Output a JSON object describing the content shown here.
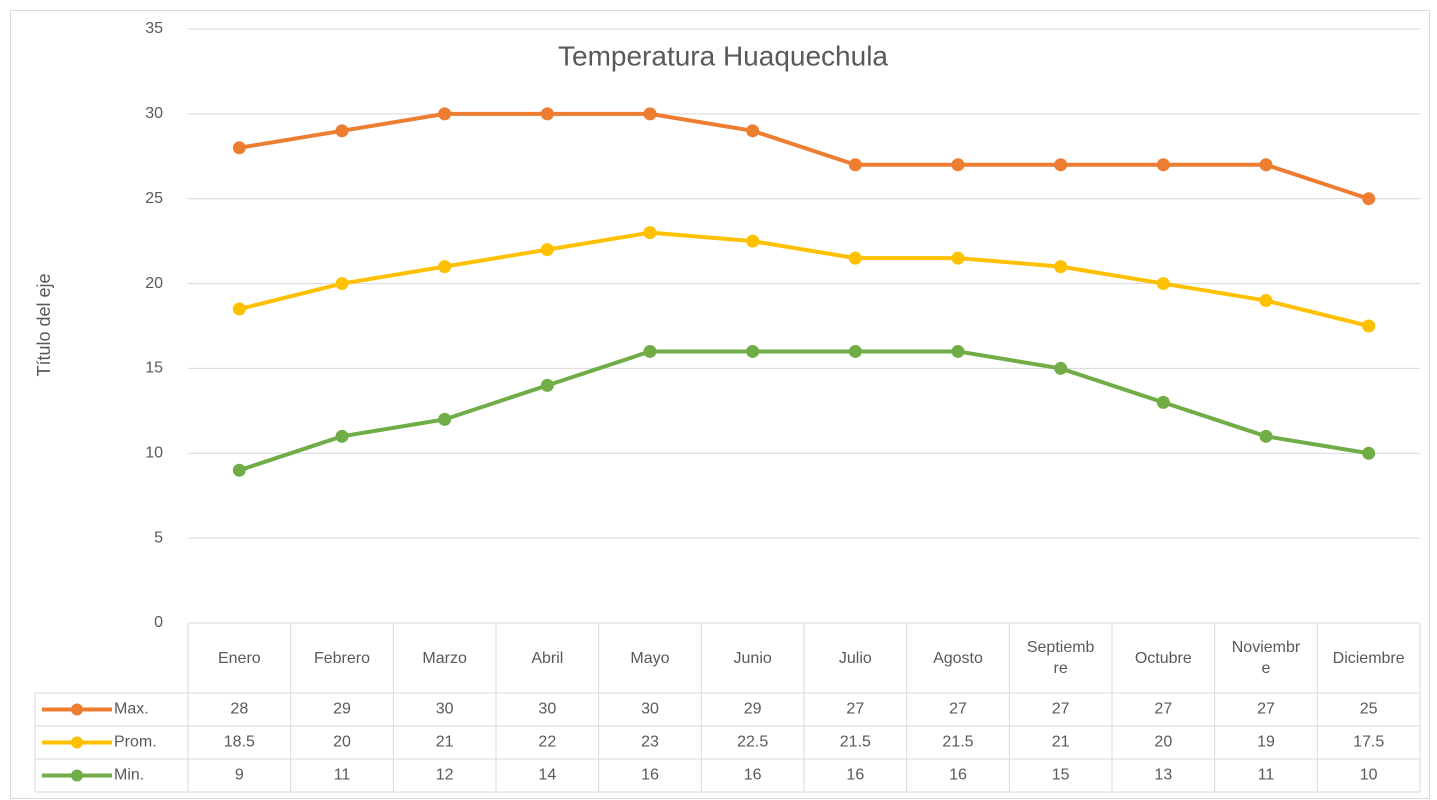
{
  "chart_data": {
    "type": "line",
    "title": "Temperatura Huaquechula",
    "y_label": "Título del eje",
    "categories": [
      "Enero",
      "Febrero",
      "Marzo",
      "Abril",
      "Mayo",
      "Junio",
      "Julio",
      "Agosto",
      "Septiembre",
      "Octubre",
      "Noviembre",
      "Diciembre"
    ],
    "series": [
      {
        "name": "Max.",
        "color": "#ED7D31",
        "values": [
          28,
          29,
          30,
          30,
          30,
          29,
          27,
          27,
          27,
          27,
          27,
          25
        ]
      },
      {
        "name": "Prom.",
        "color": "#FFC000",
        "values": [
          18.5,
          20,
          21,
          22,
          23,
          22.5,
          21.5,
          21.5,
          21,
          20,
          19,
          17.5
        ]
      },
      {
        "name": "Min.",
        "color": "#70AD47",
        "values": [
          9,
          11,
          12,
          14,
          16,
          16,
          16,
          16,
          15,
          13,
          11,
          10
        ]
      }
    ],
    "ylim": [
      0,
      35
    ],
    "yticks": [
      0,
      5,
      10,
      15,
      20,
      25,
      30,
      35
    ],
    "grid": true,
    "data_table": true
  }
}
